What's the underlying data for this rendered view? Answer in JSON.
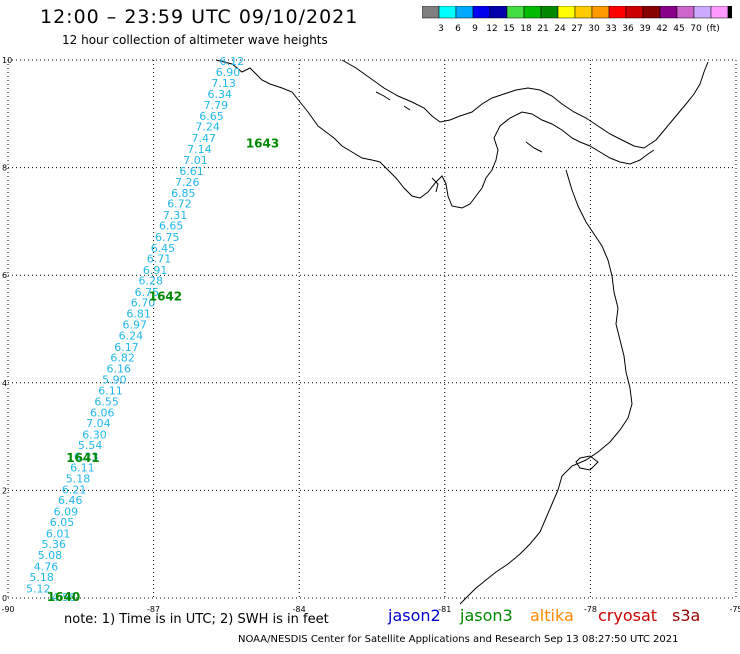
{
  "title": "12:00 – 23:59 UTC 09/10/2021",
  "subtitle": "12 hour collection of altimeter wave heights",
  "legend": {
    "colors": [
      "#808080",
      "#00ffff",
      "#00aaff",
      "#0000ee",
      "#0000aa",
      "#44dd44",
      "#00bb00",
      "#008800",
      "#ffff00",
      "#ffcc00",
      "#ff9900",
      "#ff0000",
      "#cc0000",
      "#880000",
      "#880088",
      "#cc66cc",
      "#ccaaff",
      "#ff99ff",
      "#000000"
    ],
    "labels": [
      "3",
      "6",
      "9",
      "12",
      "15",
      "18",
      "21",
      "24",
      "27",
      "30",
      "33",
      "36",
      "39",
      "42",
      "45",
      "70",
      "(ft)"
    ]
  },
  "map": {
    "lon_ticks": [
      "-90",
      "-87",
      "-84",
      "-81",
      "-78",
      "-75"
    ],
    "lat_ticks": [
      "0",
      "2",
      "4",
      "6",
      "8",
      "10"
    ]
  },
  "track": {
    "wave_heights": [
      {
        "lon": -89.1,
        "lat": 0.02,
        "v": "4.58"
      },
      {
        "lon": -89.63,
        "lat": 0.18,
        "v": "5.12"
      },
      {
        "lon": -89.56,
        "lat": 0.39,
        "v": "5.18"
      },
      {
        "lon": -89.47,
        "lat": 0.59,
        "v": "4.76"
      },
      {
        "lon": -89.39,
        "lat": 0.8,
        "v": "5.08"
      },
      {
        "lon": -89.31,
        "lat": 1.0,
        "v": "5.36"
      },
      {
        "lon": -89.22,
        "lat": 1.2,
        "v": "6.01"
      },
      {
        "lon": -89.14,
        "lat": 1.41,
        "v": "6.05"
      },
      {
        "lon": -89.06,
        "lat": 1.61,
        "v": "6.09"
      },
      {
        "lon": -88.97,
        "lat": 1.82,
        "v": "6.46"
      },
      {
        "lon": -88.89,
        "lat": 2.02,
        "v": "6.21"
      },
      {
        "lon": -88.81,
        "lat": 2.22,
        "v": "5.18"
      },
      {
        "lon": -88.72,
        "lat": 2.43,
        "v": "6.11"
      },
      {
        "lon": -88.64,
        "lat": 2.63,
        "v": "6.23"
      },
      {
        "lon": -88.56,
        "lat": 2.84,
        "v": "5.54"
      },
      {
        "lon": -88.47,
        "lat": 3.04,
        "v": "6.30"
      },
      {
        "lon": -88.39,
        "lat": 3.25,
        "v": "7.04"
      },
      {
        "lon": -88.31,
        "lat": 3.45,
        "v": "6.06"
      },
      {
        "lon": -88.22,
        "lat": 3.65,
        "v": "6.55"
      },
      {
        "lon": -88.14,
        "lat": 3.86,
        "v": "6.11"
      },
      {
        "lon": -88.06,
        "lat": 4.06,
        "v": "5.90"
      },
      {
        "lon": -87.97,
        "lat": 4.27,
        "v": "6.16"
      },
      {
        "lon": -87.89,
        "lat": 4.47,
        "v": "6.82"
      },
      {
        "lon": -87.81,
        "lat": 4.67,
        "v": "6.17"
      },
      {
        "lon": -87.72,
        "lat": 4.88,
        "v": "6.24"
      },
      {
        "lon": -87.64,
        "lat": 5.08,
        "v": "6.97"
      },
      {
        "lon": -87.56,
        "lat": 5.29,
        "v": "6.81"
      },
      {
        "lon": -87.47,
        "lat": 5.49,
        "v": "6.70"
      },
      {
        "lon": -87.39,
        "lat": 5.69,
        "v": "6.75"
      },
      {
        "lon": -87.31,
        "lat": 5.9,
        "v": "6.28"
      },
      {
        "lon": -87.22,
        "lat": 6.1,
        "v": "6.91"
      },
      {
        "lon": -87.14,
        "lat": 6.31,
        "v": "6.71"
      },
      {
        "lon": -87.06,
        "lat": 6.51,
        "v": "6.45"
      },
      {
        "lon": -86.97,
        "lat": 6.71,
        "v": "6.75"
      },
      {
        "lon": -86.89,
        "lat": 6.92,
        "v": "6.65"
      },
      {
        "lon": -86.81,
        "lat": 7.12,
        "v": "7.31"
      },
      {
        "lon": -86.72,
        "lat": 7.33,
        "v": "6.72"
      },
      {
        "lon": -86.64,
        "lat": 7.53,
        "v": "6.85"
      },
      {
        "lon": -86.56,
        "lat": 7.73,
        "v": "7.26"
      },
      {
        "lon": -86.47,
        "lat": 7.94,
        "v": "6.61"
      },
      {
        "lon": -86.39,
        "lat": 8.14,
        "v": "7.01"
      },
      {
        "lon": -86.31,
        "lat": 8.35,
        "v": "7.14"
      },
      {
        "lon": -86.22,
        "lat": 8.55,
        "v": "7.47"
      },
      {
        "lon": -86.14,
        "lat": 8.76,
        "v": "7.24"
      },
      {
        "lon": -86.06,
        "lat": 8.96,
        "v": "6.65"
      },
      {
        "lon": -85.97,
        "lat": 9.16,
        "v": "7.79"
      },
      {
        "lon": -85.89,
        "lat": 9.37,
        "v": "6.34"
      },
      {
        "lon": -85.81,
        "lat": 9.57,
        "v": "7.13"
      },
      {
        "lon": -85.72,
        "lat": 9.78,
        "v": "6.90"
      },
      {
        "lon": -85.64,
        "lat": 9.98,
        "v": "6.12"
      }
    ],
    "time_labels": [
      {
        "lon": -89.2,
        "lat": 0.02,
        "v": "1640"
      },
      {
        "lon": -88.8,
        "lat": 2.6,
        "v": "1641"
      },
      {
        "lon": -87.1,
        "lat": 5.6,
        "v": "1642"
      },
      {
        "lon": -85.1,
        "lat": 8.45,
        "v": "1643"
      }
    ]
  },
  "note": "note:  1) Time is in UTC;  2) SWH is in feet",
  "satellites": {
    "jason2": "jason2",
    "jason3": "jason3",
    "altika": "altika",
    "cryosat": "cryosat",
    "s3a": "s3a"
  },
  "credit": "NOAA/NESDIS Center for Satellite Applications and Research     Sep 13 08:27:50 UTC 2021"
}
